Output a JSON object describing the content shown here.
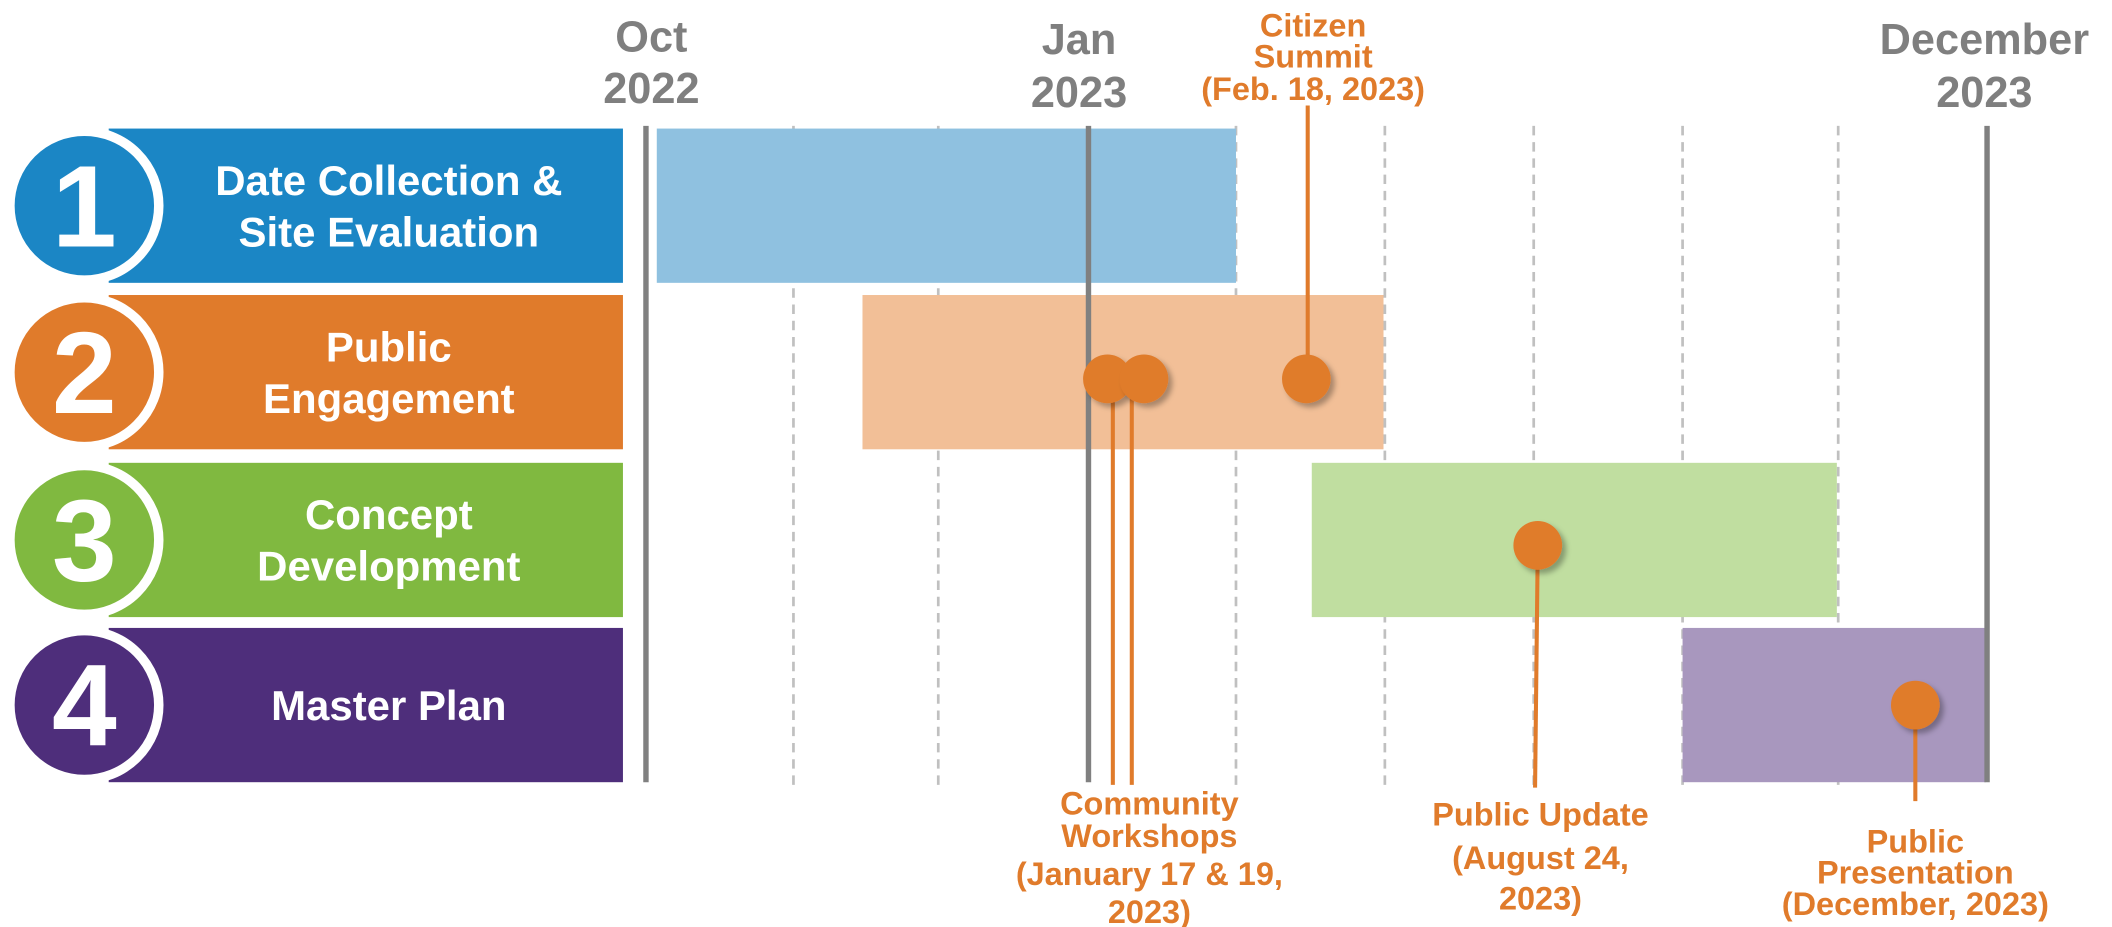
{
  "header": [
    {
      "lines": [
        "Oct",
        "2022"
      ]
    },
    {
      "lines": [
        "Jan",
        "2023"
      ]
    },
    {
      "lines": [
        "December",
        "2023"
      ]
    }
  ],
  "phases": [
    {
      "number": "1",
      "lines": [
        "Date Collection &",
        "Site Evaluation"
      ],
      "color": "#1b86c5",
      "bar_color": "#8fc1e0"
    },
    {
      "number": "2",
      "lines": [
        "Public",
        "Engagement"
      ],
      "color": "#e07b2b",
      "bar_color": "#f2bf97"
    },
    {
      "number": "3",
      "lines": [
        "Concept",
        "Development"
      ],
      "color": "#80b940",
      "bar_color": "#c0dea0"
    },
    {
      "number": "4",
      "lines": [
        "Master Plan"
      ],
      "color": "#4e2e7b",
      "bar_color": "#a897be"
    }
  ],
  "milestones": [
    {
      "lines": [
        "Citizen",
        "Summit",
        "(Feb. 18, 2023)"
      ]
    },
    {
      "lines": [
        "Community",
        "Workshops",
        "(January 17 & 19,",
        "2023)"
      ]
    },
    {
      "lines": [
        "Public Update",
        "(August 24,",
        "2023)"
      ]
    },
    {
      "lines": [
        "Public",
        "Presentation",
        "(December, 2023)"
      ]
    }
  ],
  "milestone_color": "#e07b2b"
}
